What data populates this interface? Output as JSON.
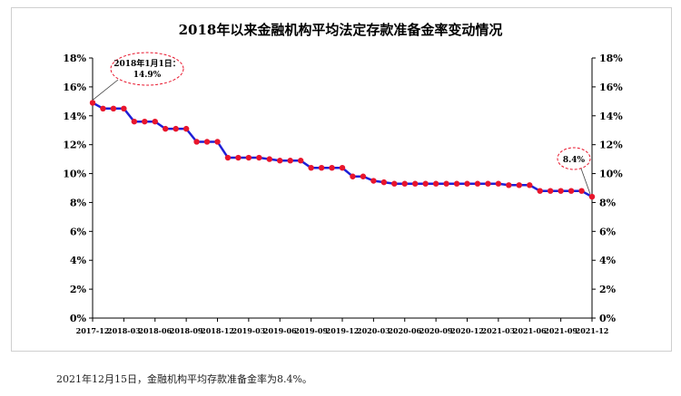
{
  "chart_data": {
    "type": "line",
    "title": "2018年以来金融机构平均法定存款准备金率变动情况",
    "ylim": [
      0,
      18
    ],
    "y_ticks": [
      "0%",
      "2%",
      "4%",
      "6%",
      "8%",
      "10%",
      "12%",
      "14%",
      "16%",
      "18%"
    ],
    "x_ticks": [
      "2017-12",
      "2018-03",
      "2018-06",
      "2018-09",
      "2018-12",
      "2019-03",
      "2019-06",
      "2019-09",
      "2019-12",
      "2020-03",
      "2020-06",
      "2020-09",
      "2020-12",
      "2021-03",
      "2021-06",
      "2021-09",
      "2021-12"
    ],
    "series": [
      {
        "color": "#1f1fd6",
        "marker_color": "#e8152c",
        "x": [
          "2017-12",
          "2018-01",
          "2018-02",
          "2018-03",
          "2018-04",
          "2018-05",
          "2018-06",
          "2018-07",
          "2018-08",
          "2018-09",
          "2018-10",
          "2018-11",
          "2018-12",
          "2019-01",
          "2019-02",
          "2019-03",
          "2019-04",
          "2019-05",
          "2019-06",
          "2019-07",
          "2019-08",
          "2019-09",
          "2019-10",
          "2019-11",
          "2019-12",
          "2020-01",
          "2020-02",
          "2020-03",
          "2020-04",
          "2020-05",
          "2020-06",
          "2020-07",
          "2020-08",
          "2020-09",
          "2020-10",
          "2020-11",
          "2020-12",
          "2021-01",
          "2021-02",
          "2021-03",
          "2021-04",
          "2021-05",
          "2021-06",
          "2021-07",
          "2021-08",
          "2021-09",
          "2021-10",
          "2021-11",
          "2021-12"
        ],
        "values": [
          14.9,
          14.5,
          14.5,
          14.5,
          13.6,
          13.6,
          13.6,
          13.1,
          13.1,
          13.1,
          12.2,
          12.2,
          12.2,
          11.1,
          11.1,
          11.1,
          11.1,
          11.0,
          10.9,
          10.9,
          10.9,
          10.4,
          10.4,
          10.4,
          10.4,
          9.8,
          9.8,
          9.5,
          9.4,
          9.3,
          9.3,
          9.3,
          9.3,
          9.3,
          9.3,
          9.3,
          9.3,
          9.3,
          9.3,
          9.3,
          9.2,
          9.2,
          9.2,
          8.8,
          8.8,
          8.8,
          8.8,
          8.8,
          8.4
        ]
      }
    ],
    "annotations": [
      {
        "x": "2017-12",
        "line1": "2018年1月1日：",
        "line2": "14.9%"
      },
      {
        "x": "2021-12",
        "line1": "8.4%"
      }
    ],
    "grid": false,
    "legend": "none"
  },
  "footnote": "2021年12月15日，金融机构平均存款准备金率为8.4%。"
}
